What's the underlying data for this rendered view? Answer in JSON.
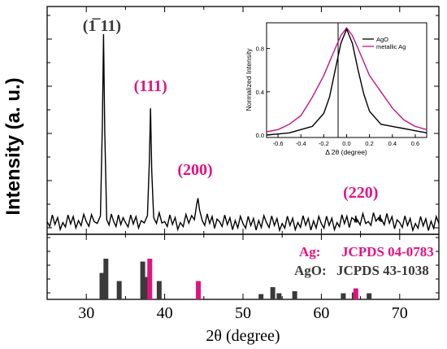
{
  "colors": {
    "ago": "#3a3a3a",
    "ag": "#e2137f",
    "axis": "#000000",
    "inset_agO_line": "#000000",
    "inset_ag_line": "#c71585"
  },
  "chart_data": [
    {
      "type": "line",
      "panel": "xrd-pattern",
      "ylabel": "Intensity (a. u.)",
      "xlim": [
        25,
        75
      ],
      "ylim": [
        0,
        1.0
      ],
      "series": [
        {
          "x": [
            25,
            27,
            29,
            30,
            31,
            31.8,
            32.05,
            32.2,
            32.35,
            32.6,
            33.5,
            35,
            37,
            37.8,
            38.05,
            38.2,
            38.35,
            38.6,
            40,
            42,
            43.8,
            44.1,
            44.25,
            44.45,
            44.8,
            47,
            50,
            53,
            55,
            57,
            60,
            62,
            64.2,
            64.4,
            64.6,
            66,
            67.3,
            67.5,
            67.7,
            70,
            72,
            75
          ],
          "y": [
            0.04,
            0.035,
            0.045,
            0.04,
            0.04,
            0.07,
            0.55,
            1.0,
            0.5,
            0.05,
            0.04,
            0.035,
            0.045,
            0.07,
            0.35,
            0.62,
            0.3,
            0.06,
            0.04,
            0.035,
            0.05,
            0.13,
            0.16,
            0.1,
            0.045,
            0.04,
            0.03,
            0.035,
            0.03,
            0.035,
            0.03,
            0.035,
            0.05,
            0.07,
            0.05,
            0.04,
            0.06,
            0.075,
            0.05,
            0.035,
            0.03,
            0.03
          ]
        }
      ],
      "annotations": [
        {
          "label": "(1̅ 11)",
          "x": 32.2,
          "color": "#3a3a3a"
        },
        {
          "label": "(111)",
          "x": 38.2,
          "color": "#e2137f"
        },
        {
          "label": "(200)",
          "x": 44.3,
          "color": "#e2137f"
        },
        {
          "label": "(220)",
          "x": 64.4,
          "color": "#e2137f"
        }
      ]
    },
    {
      "type": "bar",
      "panel": "reference-patterns",
      "xlabel": "2θ (degree)",
      "xlim": [
        25,
        75
      ],
      "xticks": [
        30,
        40,
        50,
        60,
        70
      ],
      "ylim": [
        0,
        1.0
      ],
      "legend": [
        {
          "name": "Ag:",
          "ref": "JCPDS 04-0783",
          "color": "#e2137f"
        },
        {
          "name": "AgO:",
          "ref": "JCPDS 43-1038",
          "color": "#3a3a3a"
        }
      ],
      "series": [
        {
          "name": "AgO",
          "x": [
            32.0,
            32.5,
            34.2,
            37.2,
            37.8,
            39.3,
            52.3,
            53.8,
            54.6,
            56.6,
            62.8,
            64.2,
            66.1
          ],
          "values": [
            0.65,
            1.0,
            0.45,
            0.93,
            0.55,
            0.45,
            0.13,
            0.3,
            0.15,
            0.2,
            0.15,
            0.17,
            0.15
          ]
        },
        {
          "name": "Ag",
          "x": [
            38.1,
            44.3,
            64.4
          ],
          "values": [
            1.0,
            0.45,
            0.27
          ]
        }
      ]
    },
    {
      "type": "line",
      "panel": "inset",
      "xlabel": "Δ 2θ (degree)",
      "ylabel": "Normalized Intensity",
      "xlim": [
        -0.7,
        0.7
      ],
      "ylim": [
        0,
        1.0
      ],
      "xticks": [
        -0.6,
        -0.4,
        -0.2,
        0.0,
        0.2,
        0.4,
        0.6
      ],
      "yticks": [
        0.0,
        0.4,
        0.8
      ],
      "legend_position": "top-right",
      "series": [
        {
          "name": "AgO",
          "x": [
            -0.7,
            -0.6,
            -0.5,
            -0.4,
            -0.3,
            -0.2,
            -0.15,
            -0.1,
            -0.05,
            0.0,
            0.05,
            0.1,
            0.15,
            0.2,
            0.3,
            0.4,
            0.5,
            0.6,
            0.7
          ],
          "y": [
            0.0,
            0.01,
            0.02,
            0.05,
            0.08,
            0.2,
            0.35,
            0.6,
            0.85,
            0.98,
            0.85,
            0.6,
            0.38,
            0.22,
            0.1,
            0.08,
            0.06,
            0.04,
            0.02
          ]
        },
        {
          "name": "metallic Ag",
          "x": [
            -0.7,
            -0.6,
            -0.5,
            -0.4,
            -0.3,
            -0.2,
            -0.1,
            -0.05,
            0.0,
            0.05,
            0.1,
            0.2,
            0.3,
            0.4,
            0.5,
            0.6,
            0.7
          ],
          "y": [
            0.03,
            0.05,
            0.1,
            0.18,
            0.35,
            0.55,
            0.8,
            0.92,
            0.99,
            0.92,
            0.8,
            0.55,
            0.4,
            0.25,
            0.14,
            0.08,
            0.05
          ]
        }
      ]
    }
  ]
}
